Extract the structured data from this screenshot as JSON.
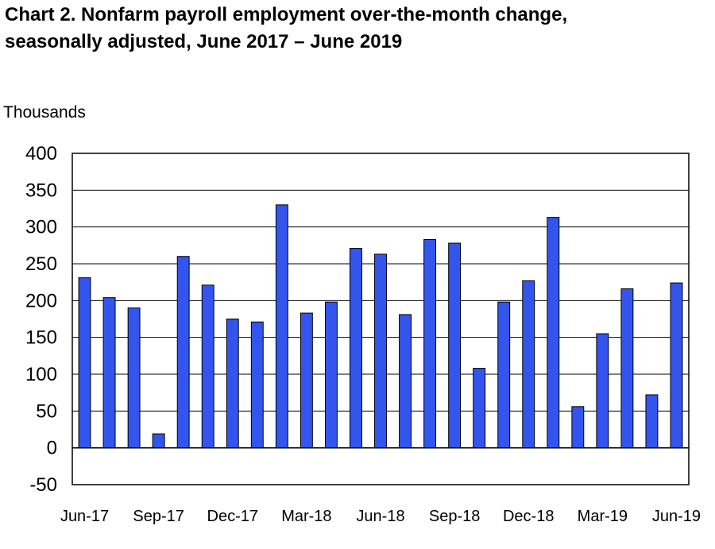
{
  "chart_data": {
    "type": "bar",
    "title_line1": "Chart 2. Nonfarm payroll employment over-the-month change,",
    "title_line2": "seasonally adjusted, June 2017 – June 2019",
    "ylabel": "Thousands",
    "ylim": [
      -50,
      400
    ],
    "yticks": [
      "400",
      "350",
      "300",
      "250",
      "200",
      "150",
      "100",
      "50",
      "0",
      "-50"
    ],
    "ytick_values": [
      400,
      350,
      300,
      250,
      200,
      150,
      100,
      50,
      0,
      -50
    ],
    "grid": true,
    "bar_color": "#3355ee",
    "xtick_labels": [
      "Jun-17",
      "Sep-17",
      "Dec-17",
      "Mar-18",
      "Jun-18",
      "Sep-18",
      "Dec-18",
      "Mar-19",
      "Jun-19"
    ],
    "categories": [
      "Jun-17",
      "Jul-17",
      "Aug-17",
      "Sep-17",
      "Oct-17",
      "Nov-17",
      "Dec-17",
      "Jan-18",
      "Feb-18",
      "Mar-18",
      "Apr-18",
      "May-18",
      "Jun-18",
      "Jul-18",
      "Aug-18",
      "Sep-18",
      "Oct-18",
      "Nov-18",
      "Dec-18",
      "Jan-19",
      "Feb-19",
      "Mar-19",
      "Apr-19",
      "May-19",
      "Jun-19"
    ],
    "values": [
      231,
      204,
      190,
      19,
      260,
      221,
      175,
      171,
      330,
      183,
      198,
      271,
      263,
      181,
      283,
      278,
      108,
      198,
      227,
      313,
      56,
      155,
      216,
      72,
      224
    ]
  }
}
